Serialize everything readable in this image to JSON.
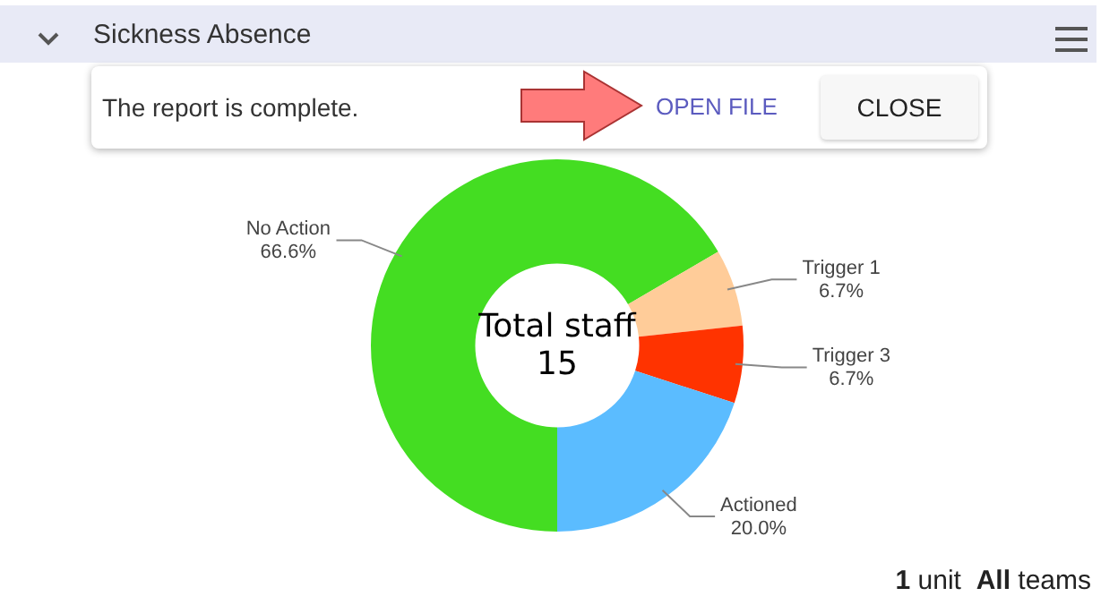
{
  "chart_data": {
    "type": "donut",
    "title": "Sickness Absence",
    "categories": [
      "No Action",
      "Trigger 1",
      "Trigger 3",
      "Actioned"
    ],
    "values": [
      66.6,
      6.7,
      6.7,
      20.0
    ],
    "value_labels": [
      "66.6%",
      "6.7%",
      "6.7%",
      "20.0%"
    ],
    "colors": [
      "#44dd22",
      "#ffcc99",
      "#ff3300",
      "#5bbcff"
    ],
    "annotations": [
      "Total staff",
      "15",
      "The report is complete.",
      "OPEN FILE",
      "CLOSE",
      "1 unit",
      "All teams"
    ],
    "legend": false
  }
}
